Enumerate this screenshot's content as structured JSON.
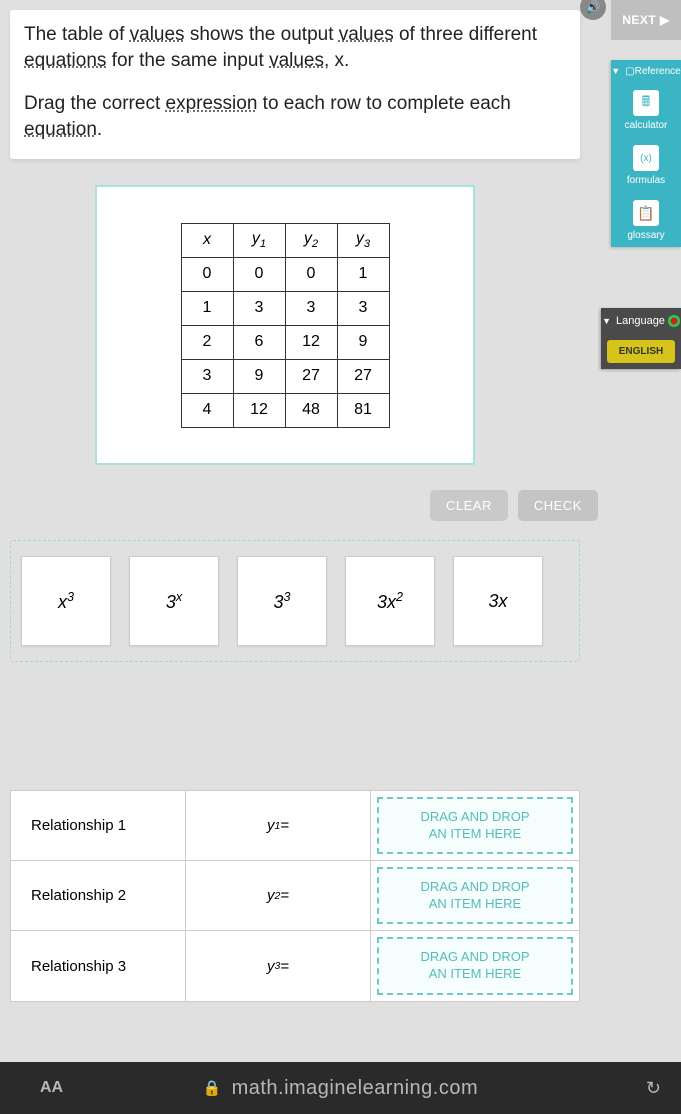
{
  "instructions": {
    "p1_a": "The table of ",
    "p1_link1": "values",
    "p1_b": " shows the output ",
    "p1_link2": "values",
    "p1_c": " of three different ",
    "p1_link3": "equations",
    "p1_d": " for the same input ",
    "p1_link4": "values",
    "p1_e": ", x.",
    "p2_a": "Drag the correct ",
    "p2_link1": "expression",
    "p2_b": " to each row to complete each ",
    "p2_link2": "equation",
    "p2_c": "."
  },
  "table": {
    "headers": {
      "h0": "x",
      "h1": "y",
      "h2": "y",
      "h3": "y",
      "s1": "1",
      "s2": "2",
      "s3": "3"
    },
    "rows": [
      [
        "0",
        "0",
        "0",
        "1"
      ],
      [
        "1",
        "3",
        "3",
        "3"
      ],
      [
        "2",
        "6",
        "12",
        "9"
      ],
      [
        "3",
        "9",
        "27",
        "27"
      ],
      [
        "4",
        "12",
        "48",
        "81"
      ]
    ]
  },
  "buttons": {
    "clear": "CLEAR",
    "check": "CHECK"
  },
  "tiles": {
    "t1_base": "x",
    "t1_sup": "3",
    "t2": "3",
    "t2_sup": "x",
    "t3": "3",
    "t3_sup": "3",
    "t4_a": "3",
    "t4_b": "x",
    "t4_sup": "2",
    "t5_a": "3",
    "t5_b": "x"
  },
  "relationships": {
    "r1_label": "Relationship 1",
    "r1_eq_base": "y",
    "r1_eq_sub": "1",
    "r1_eq_suffix": " =",
    "r2_label": "Relationship 2",
    "r2_eq_base": "y",
    "r2_eq_sub": "2",
    "r2_eq_suffix": " =",
    "r3_label": "Relationship 3",
    "r3_eq_base": "y",
    "r3_eq_sub": "3",
    "r3_eq_suffix": " =",
    "drop_line1": "DRAG AND DROP",
    "drop_line2": "AN ITEM HERE"
  },
  "sidebar": {
    "next": "NEXT ▶",
    "ref_title": "▢Reference",
    "calc": "calculator",
    "formulas": "formulas",
    "glossary": "glossary",
    "lang_title": "Language",
    "english": "ENGLISH"
  },
  "browser": {
    "url": "math.imaginelearning.com"
  }
}
